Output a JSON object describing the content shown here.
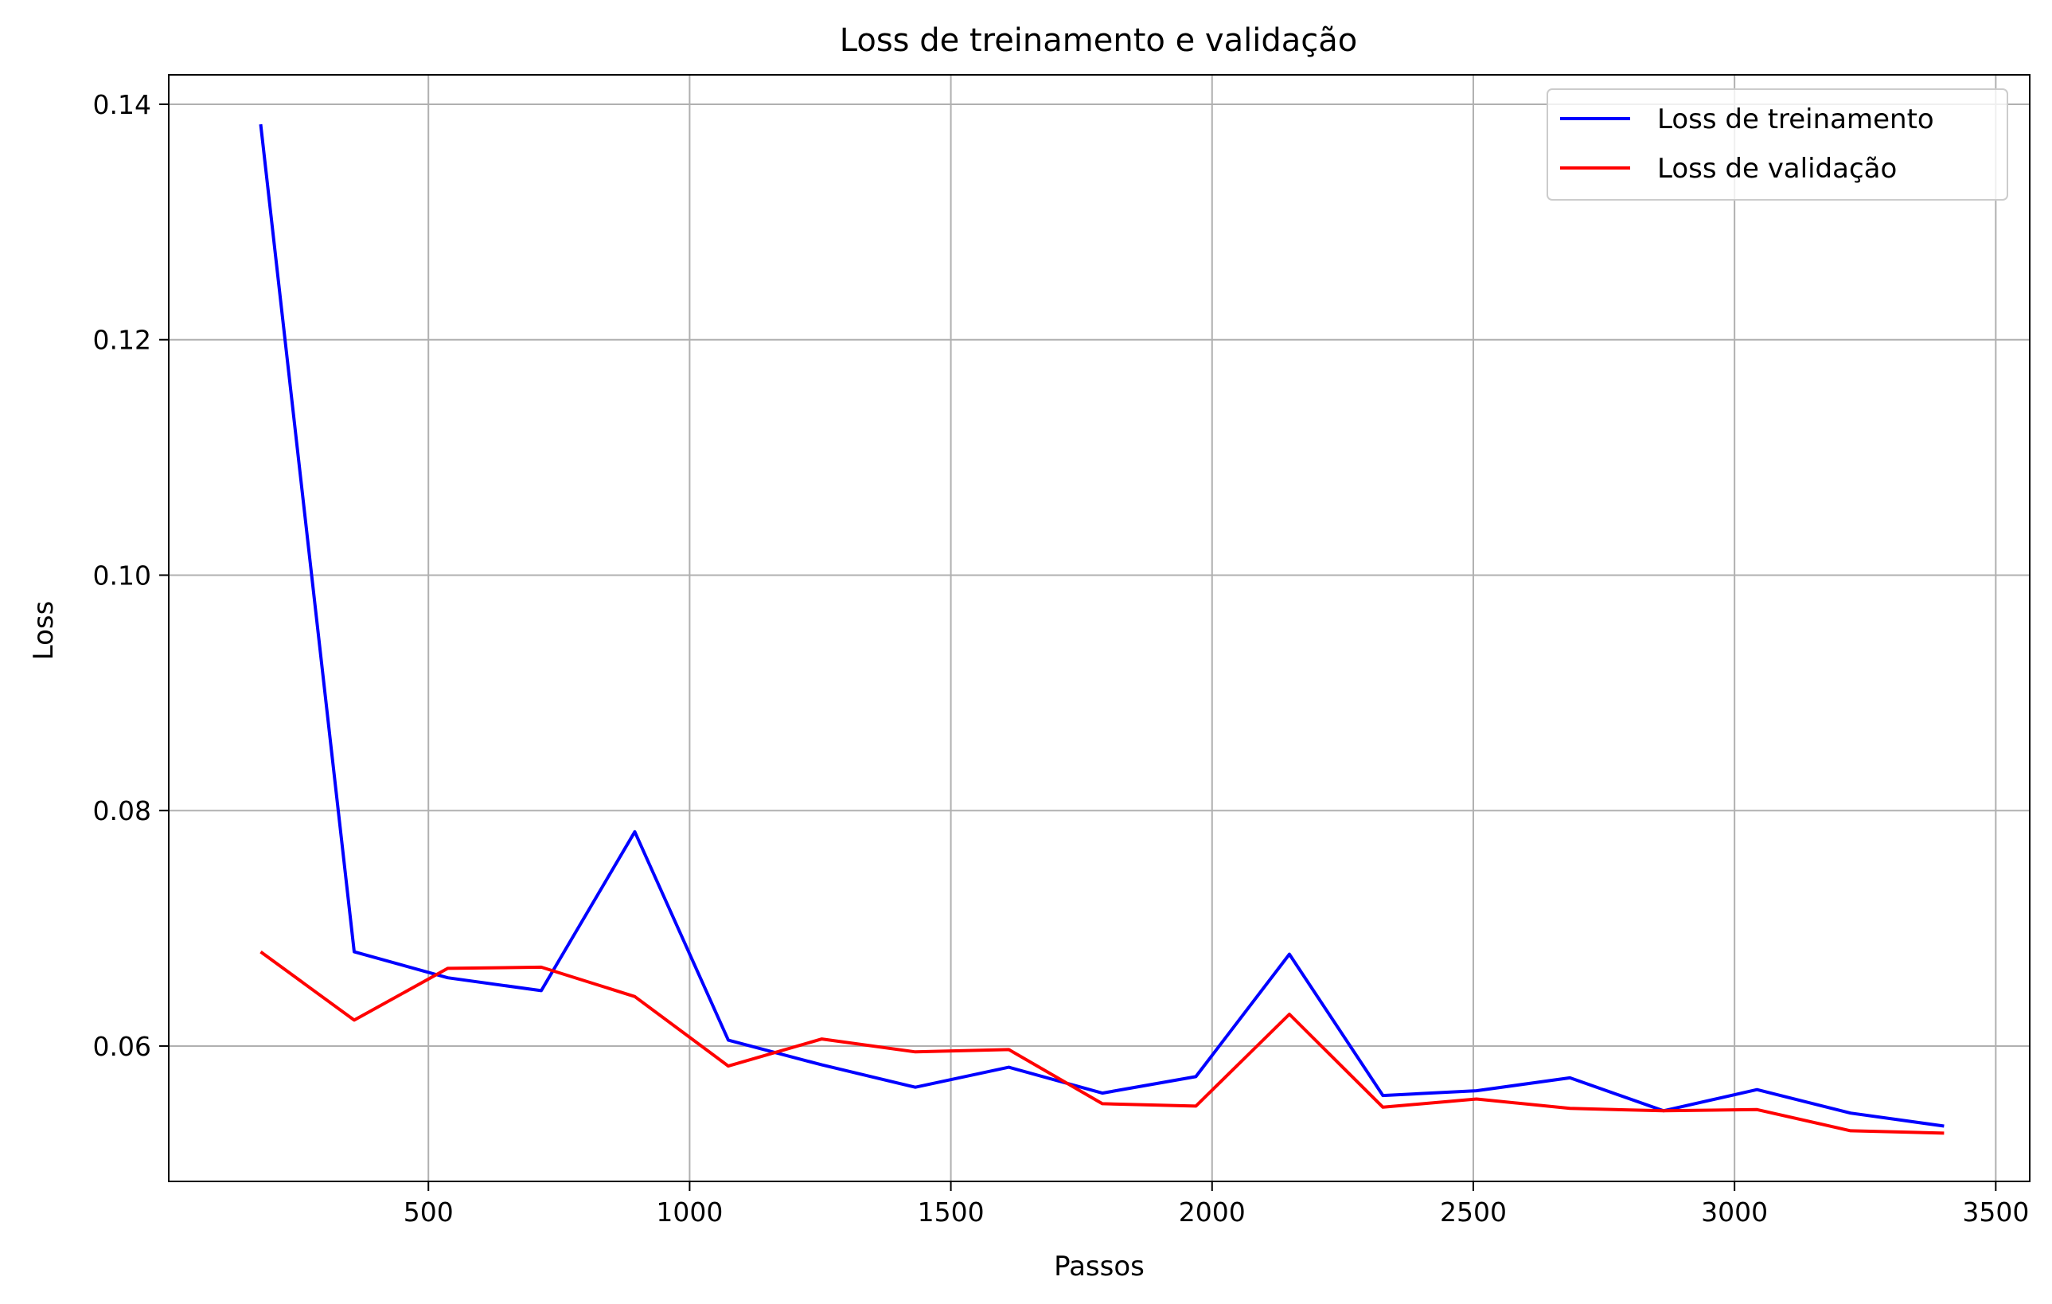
{
  "chart_data": {
    "type": "line",
    "title": "Loss de treinamento e validação",
    "xlabel": "Passos",
    "ylabel": "Loss",
    "xlim": [
      3,
      3565
    ],
    "ylim": [
      0.0485,
      0.1425
    ],
    "xticks": [
      500,
      1000,
      1500,
      2000,
      2500,
      3000,
      3500
    ],
    "yticks": [
      0.06,
      0.08,
      0.1,
      0.12,
      0.14
    ],
    "ytick_labels": [
      "0.06",
      "0.08",
      "0.10",
      "0.12",
      "0.14"
    ],
    "grid": true,
    "legend_position": "top-right",
    "x": [
      179,
      358,
      537,
      716,
      895,
      1074,
      1253,
      1432,
      1611,
      1790,
      1969,
      2148,
      2327,
      2506,
      2685,
      2864,
      3043,
      3222,
      3401
    ],
    "series": [
      {
        "name": "Loss de treinamento",
        "color": "#0000ff",
        "values": [
          0.1383,
          0.068,
          0.0658,
          0.0647,
          0.0782,
          0.0605,
          0.0584,
          0.0565,
          0.0582,
          0.056,
          0.0574,
          0.0678,
          0.0558,
          0.0562,
          0.0573,
          0.0545,
          0.0563,
          0.0543,
          0.0532
        ]
      },
      {
        "name": "Loss de validação",
        "color": "#ff0000",
        "values": [
          0.068,
          0.0622,
          0.0666,
          0.0667,
          0.0642,
          0.0583,
          0.0606,
          0.0595,
          0.0597,
          0.0551,
          0.0549,
          0.0627,
          0.0548,
          0.0555,
          0.0547,
          0.0545,
          0.0546,
          0.0528,
          0.0526
        ]
      }
    ]
  }
}
